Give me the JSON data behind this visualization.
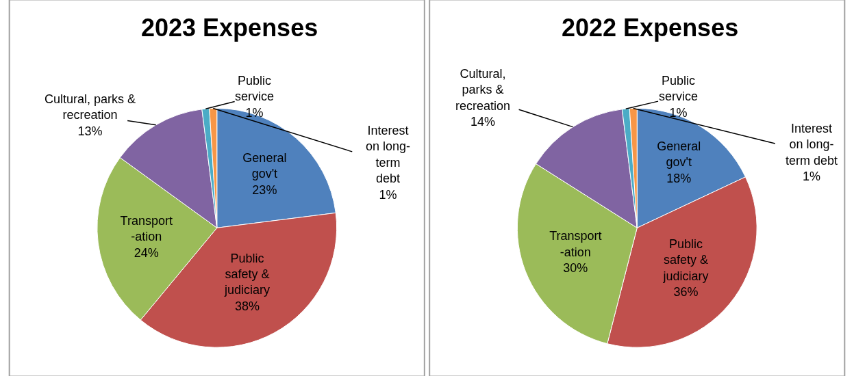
{
  "chart_data": [
    {
      "type": "pie",
      "title": "2023 Expenses",
      "categories": [
        "General\ngov't",
        "Public\nsafety &\njudiciary",
        "Transport\n-ation",
        "Cultural, parks &\nrecreation",
        "Public\nservice",
        "Interest\non long-\nterm\ndebt"
      ],
      "values": [
        23,
        38,
        24,
        13,
        1,
        1
      ],
      "colors": [
        "#4f81bd",
        "#c0504d",
        "#9bbb59",
        "#8064a2",
        "#4bacc6",
        "#f79646"
      ],
      "value_labels": [
        "23%",
        "38%",
        "24%",
        "13%",
        "1%",
        "1%"
      ],
      "data_labels": true
    },
    {
      "type": "pie",
      "title": "2022 Expenses",
      "categories": [
        "General\ngov't",
        "Public\nsafety &\njudiciary",
        "Transport\n-ation",
        "Cultural,\nparks &\nrecreation",
        "Public\nservice",
        "Interest\non long-\nterm debt"
      ],
      "values": [
        18,
        36,
        30,
        14,
        1,
        1
      ],
      "colors": [
        "#4f81bd",
        "#c0504d",
        "#9bbb59",
        "#8064a2",
        "#4bacc6",
        "#f79646"
      ],
      "value_labels": [
        "18%",
        "36%",
        "30%",
        "14%",
        "1%",
        "1%"
      ],
      "data_labels": true
    }
  ]
}
